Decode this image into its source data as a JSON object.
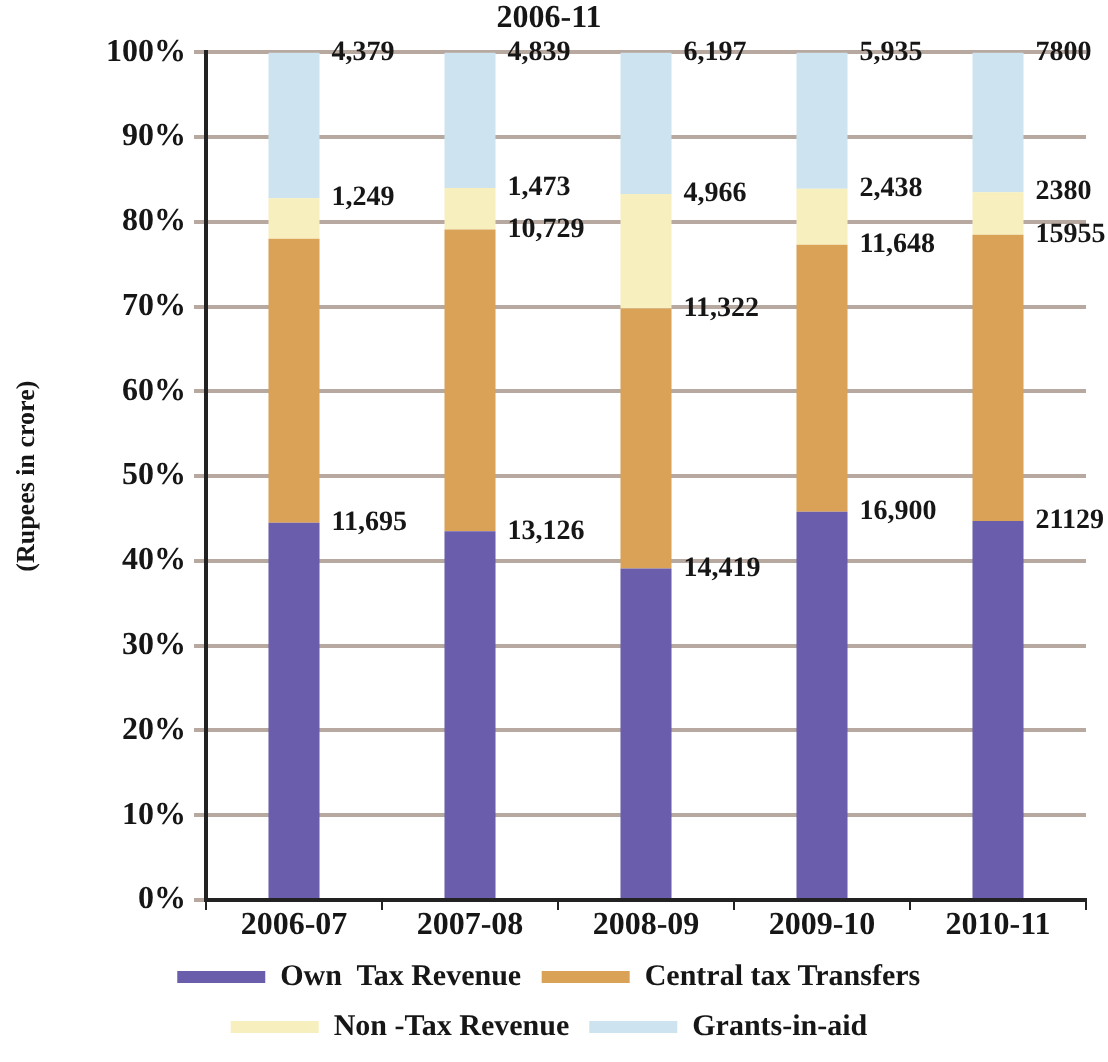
{
  "chart_data": {
    "type": "bar",
    "title": "2006-11",
    "ylabel": "(Rupees in crore)",
    "categories": [
      "2006-07",
      "2007-08",
      "2008-09",
      "2009-10",
      "2010-11"
    ],
    "stacked": true,
    "series": [
      {
        "name": "Own  Tax Revenue",
        "color": "#6a5eac",
        "values": [
          44.5,
          43.5,
          39.1,
          45.8,
          44.7
        ]
      },
      {
        "name": "Central tax Transfers",
        "color": "#d9a257",
        "values": [
          33.5,
          35.6,
          30.7,
          31.5,
          33.8
        ]
      },
      {
        "name": "Non -Tax Revenue",
        "color": "#f7efbd",
        "values": [
          4.8,
          4.9,
          13.5,
          6.6,
          5.0
        ]
      },
      {
        "name": "Grants-in-aid",
        "color": "#cde3ef",
        "values": [
          17.2,
          16.0,
          16.7,
          16.1,
          16.5
        ]
      }
    ],
    "annotations": [
      {
        "text": "11,695",
        "x": "2006-07",
        "y": 44.5
      },
      {
        "text": "1,249",
        "x": "2006-07",
        "y": 82.8
      },
      {
        "text": "4,379",
        "x": "2006-07",
        "y": 100
      },
      {
        "text": "13,126",
        "x": "2007-08",
        "y": 43.5
      },
      {
        "text": "10,729",
        "x": "2007-08",
        "y": 79.1
      },
      {
        "text": "1,473",
        "x": "2007-08",
        "y": 84.0
      },
      {
        "text": "4,839",
        "x": "2007-08",
        "y": 100
      },
      {
        "text": "14,419",
        "x": "2008-09",
        "y": 39.1
      },
      {
        "text": "11,322",
        "x": "2008-09",
        "y": 69.8
      },
      {
        "text": "4,966",
        "x": "2008-09",
        "y": 83.3
      },
      {
        "text": "6,197",
        "x": "2008-09",
        "y": 100
      },
      {
        "text": "16,900",
        "x": "2009-10",
        "y": 45.8
      },
      {
        "text": "11,648",
        "x": "2009-10",
        "y": 77.3
      },
      {
        "text": "2,438",
        "x": "2009-10",
        "y": 83.9
      },
      {
        "text": "5,935",
        "x": "2009-10",
        "y": 100
      },
      {
        "text": "21129",
        "x": "2010-11",
        "y": 44.7
      },
      {
        "text": "15955",
        "x": "2010-11",
        "y": 78.5
      },
      {
        "text": "2380",
        "x": "2010-11",
        "y": 83.5
      },
      {
        "text": "7800",
        "x": "2010-11",
        "y": 100
      }
    ],
    "ylim": [
      0,
      100
    ],
    "yticks": [
      {
        "value": 0,
        "label": "0%"
      },
      {
        "value": 10,
        "label": "10%"
      },
      {
        "value": 20,
        "label": "20%"
      },
      {
        "value": 30,
        "label": "30%"
      },
      {
        "value": 40,
        "label": "40%"
      },
      {
        "value": 50,
        "label": "50%"
      },
      {
        "value": 60,
        "label": "60%"
      },
      {
        "value": 70,
        "label": "70%"
      },
      {
        "value": 80,
        "label": "80%"
      },
      {
        "value": 90,
        "label": "90%"
      },
      {
        "value": 100,
        "label": "100%"
      }
    ],
    "grid": "y",
    "legend": "bottom"
  }
}
